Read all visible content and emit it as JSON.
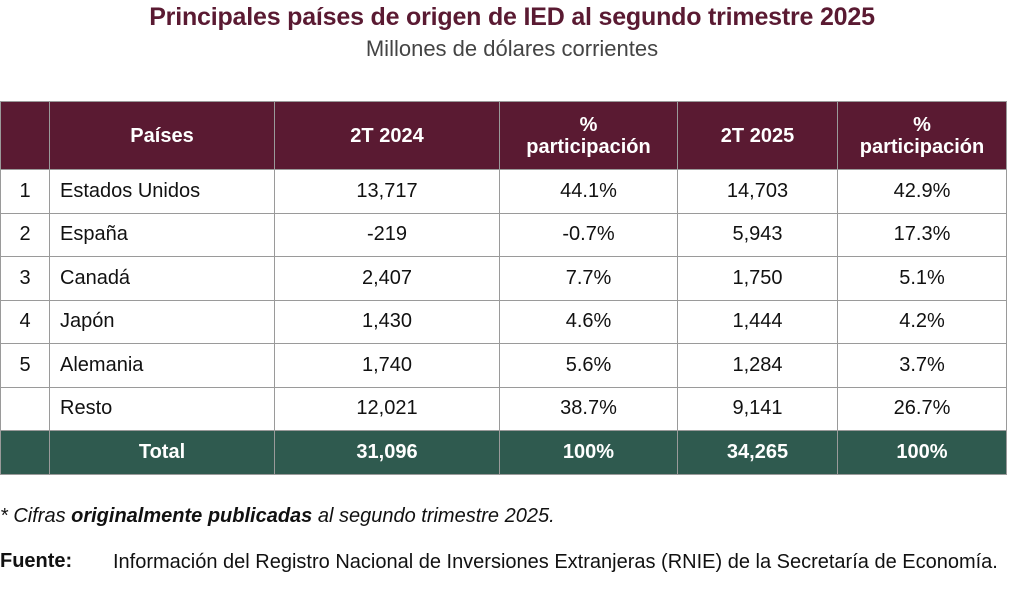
{
  "title": "Principales países de origen de IED al segundo trimestre 2025",
  "subtitle": "Millones de dólares corrientes",
  "table": {
    "headers": [
      "",
      "Países",
      "2T 2024",
      "%\nparticipación",
      "2T 2025",
      "%\nparticipación"
    ],
    "header_lines": {
      "pct1_line1": "%",
      "pct1_line2": "participación",
      "pct2_line1": "%",
      "pct2_line2": "participación"
    },
    "rows": [
      {
        "rank": "1",
        "country": "Estados Unidos",
        "v2024": "13,717",
        "p2024": "44.1%",
        "v2025": "14,703",
        "p2025": "42.9%"
      },
      {
        "rank": "2",
        "country": "España",
        "v2024": "-219",
        "p2024": "-0.7%",
        "v2025": "5,943",
        "p2025": "17.3%"
      },
      {
        "rank": "3",
        "country": "Canadá",
        "v2024": "2,407",
        "p2024": "7.7%",
        "v2025": "1,750",
        "p2025": "5.1%"
      },
      {
        "rank": "4",
        "country": "Japón",
        "v2024": "1,430",
        "p2024": "4.6%",
        "v2025": "1,444",
        "p2025": "4.2%"
      },
      {
        "rank": "5",
        "country": "Alemania",
        "v2024": "1,740",
        "p2024": "5.6%",
        "v2025": "1,284",
        "p2025": "3.7%"
      },
      {
        "rank": "",
        "country": "Resto",
        "v2024": "12,021",
        "p2024": "38.7%",
        "v2025": "9,141",
        "p2025": "26.7%"
      }
    ],
    "total": {
      "label": "Total",
      "v2024": "31,096",
      "p2024": "100%",
      "v2025": "34,265",
      "p2025": "100%"
    }
  },
  "note": {
    "prefix": "* Cifras ",
    "bold": "originalmente publicadas",
    "suffix": " al segundo trimestre 2025."
  },
  "source": {
    "label": "Fuente:",
    "text": "Información del Registro Nacional de Inversiones Extranjeras (RNIE) de la Secretaría de Economía."
  },
  "colors": {
    "header_bg": "#5a1a32",
    "total_bg": "#2f5a4f",
    "title_color": "#5a1a32"
  }
}
